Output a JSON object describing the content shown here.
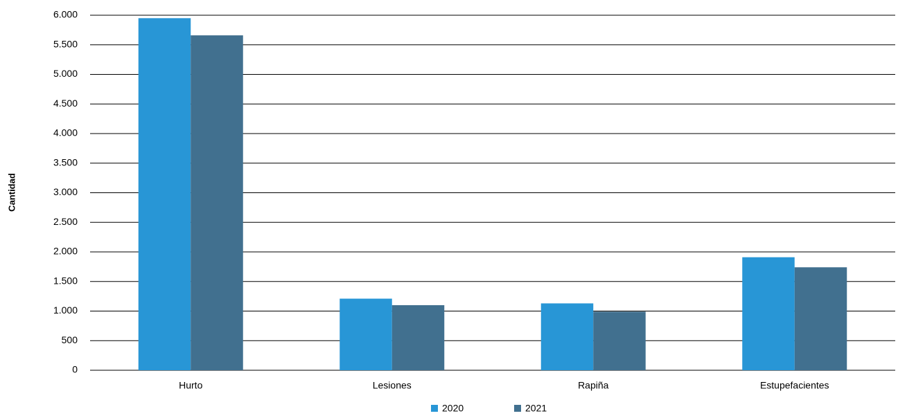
{
  "chart_data": {
    "type": "bar",
    "y_label": "Cantidad",
    "categories": [
      "Hurto",
      "Lesiones",
      "Rapiña",
      "Estupefacientes"
    ],
    "series": [
      {
        "name": "2020",
        "color": "#2896d6",
        "values": [
          5950,
          1210,
          1130,
          1910
        ]
      },
      {
        "name": "2021",
        "color": "#41708f",
        "values": [
          5660,
          1100,
          990,
          1740
        ]
      }
    ],
    "ylim": [
      0,
      6000
    ],
    "yticks": [
      0,
      500,
      {
        "value": 1000,
        "label": "1.000"
      },
      {
        "value": 1500,
        "label": "1.500"
      },
      {
        "value": 2000,
        "label": "2.000"
      },
      {
        "value": 2500,
        "label": "2.500"
      },
      {
        "value": 3000,
        "label": "3.000"
      },
      {
        "value": 3500,
        "label": "3.500"
      },
      {
        "value": 4000,
        "label": "4.000"
      },
      {
        "value": 4500,
        "label": "4.500"
      },
      {
        "value": 5000,
        "label": "5.000"
      },
      {
        "value": 5500,
        "label": "5.500"
      },
      {
        "value": 6000,
        "label": "6.000"
      }
    ],
    "grid": true,
    "legend": "bottom"
  }
}
